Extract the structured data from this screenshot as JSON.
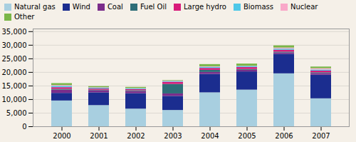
{
  "chart_data": {
    "type": "bar",
    "stacked": true,
    "categories": [
      "2000",
      "2001",
      "2002",
      "2003",
      "2004",
      "2005",
      "2006",
      "2007"
    ],
    "series": [
      {
        "name": "Natural gas",
        "color": "#a8cfe0",
        "values": [
          9500,
          7800,
          6500,
          6000,
          12500,
          13500,
          19500,
          10300
        ]
      },
      {
        "name": "Wind",
        "color": "#1b2d8f",
        "values": [
          2800,
          4700,
          5700,
          5200,
          6800,
          6700,
          7200,
          8700
        ]
      },
      {
        "name": "Coal",
        "color": "#7b2d8b",
        "values": [
          1200,
          800,
          800,
          900,
          700,
          600,
          500,
          600
        ]
      },
      {
        "name": "Fuel Oil",
        "color": "#2e6e78",
        "values": [
          300,
          200,
          300,
          3500,
          800,
          300,
          300,
          300
        ]
      },
      {
        "name": "Large hydro",
        "color": "#d81b7a",
        "values": [
          600,
          400,
          400,
          800,
          700,
          700,
          700,
          600
        ]
      },
      {
        "name": "Biomass",
        "color": "#4fc8e8",
        "values": [
          500,
          300,
          300,
          300,
          400,
          400,
          400,
          400
        ]
      },
      {
        "name": "Nuclear",
        "color": "#f9a8c9",
        "values": [
          300,
          200,
          100,
          100,
          200,
          100,
          400,
          500
        ]
      },
      {
        "name": "Other",
        "color": "#7ab648",
        "values": [
          700,
          400,
          400,
          200,
          800,
          800,
          800,
          600
        ]
      }
    ],
    "ylim": [
      0,
      36000
    ],
    "yticks": [
      0,
      {
        "value": 5000,
        "label": "5,000"
      },
      {
        "value": 10000,
        "label": "10,000"
      },
      {
        "value": 15000,
        "label": "15,000"
      },
      {
        "value": 20000,
        "label": "20,000"
      },
      {
        "value": 25000,
        "label": "25,000"
      },
      {
        "value": 30000,
        "label": "30,000"
      },
      {
        "value": 35000,
        "label": "35,000"
      }
    ],
    "grid": true,
    "legend": "upper left"
  }
}
